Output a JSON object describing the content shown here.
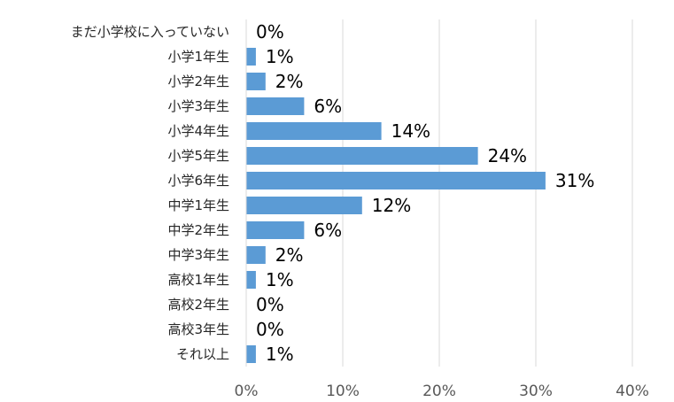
{
  "chart_data": {
    "type": "bar",
    "orientation": "horizontal",
    "categories": [
      "まだ小学校に入っていない",
      "小学1年生",
      "小学2年生",
      "小学3年生",
      "小学4年生",
      "小学5年生",
      "小学6年生",
      "中学1年生",
      "中学2年生",
      "中学3年生",
      "高校1年生",
      "高校2年生",
      "高校3年生",
      "それ以上"
    ],
    "values": [
      0,
      1,
      2,
      6,
      14,
      24,
      31,
      12,
      6,
      2,
      1,
      0,
      0,
      1
    ],
    "data_labels": [
      "0%",
      "1%",
      "2%",
      "6%",
      "14%",
      "24%",
      "31%",
      "12%",
      "6%",
      "2%",
      "1%",
      "0%",
      "0%",
      "1%"
    ],
    "title": "",
    "xlabel": "",
    "ylabel": "",
    "xlim": [
      0,
      40
    ],
    "xticks": [
      0,
      10,
      20,
      30,
      40
    ],
    "xtick_labels": [
      "0%",
      "10%",
      "20%",
      "30%",
      "40%"
    ],
    "grid": "vertical",
    "legend": "none",
    "colors": {
      "bar": "#5b9bd5",
      "grid": "#d9d9d9",
      "axis": "#d9d9d9"
    }
  }
}
